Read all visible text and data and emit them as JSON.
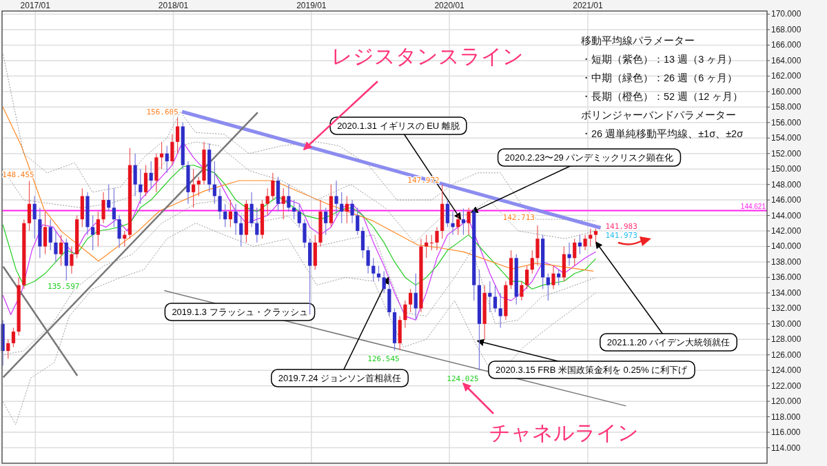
{
  "chart_data": {
    "type": "candlestick",
    "xlim": [
      "2016-10-05",
      "2022-04-20"
    ],
    "ylim": [
      112,
      170.4
    ],
    "xticks": [
      {
        "value": "2017-01-01",
        "label": "2017/01"
      },
      {
        "value": "2018-01-01",
        "label": "2018/01"
      },
      {
        "value": "2019-01-01",
        "label": "2019/01"
      },
      {
        "value": "2020-01-01",
        "label": "2020/01"
      },
      {
        "value": "2021-01-01",
        "label": "2021/01"
      }
    ],
    "yticks": [
      {
        "value": 114,
        "label": "114.000"
      },
      {
        "value": 116,
        "label": "116.000"
      },
      {
        "value": 118,
        "label": "118.000"
      },
      {
        "value": 120,
        "label": "120.000"
      },
      {
        "value": 122,
        "label": "122.000"
      },
      {
        "value": 124,
        "label": "124.000"
      },
      {
        "value": 126,
        "label": "126.000"
      },
      {
        "value": 128,
        "label": "128.000"
      },
      {
        "value": 130,
        "label": "130.000"
      },
      {
        "value": 132,
        "label": "132.000"
      },
      {
        "value": 134,
        "label": "134.000"
      },
      {
        "value": 136,
        "label": "136.000"
      },
      {
        "value": 138,
        "label": "138.000"
      },
      {
        "value": 140,
        "label": "140.000"
      },
      {
        "value": 142,
        "label": "142.000"
      },
      {
        "value": 144,
        "label": "144.000"
      },
      {
        "value": 146,
        "label": "146.000"
      },
      {
        "value": 148,
        "label": "148.000"
      },
      {
        "value": 150,
        "label": "150.000"
      },
      {
        "value": 152,
        "label": "152.000"
      },
      {
        "value": 154,
        "label": "154.000"
      },
      {
        "value": 156,
        "label": "156.000"
      },
      {
        "value": 158,
        "label": "158.000"
      },
      {
        "value": 160,
        "label": "160.000"
      },
      {
        "value": 162,
        "label": "162.000"
      },
      {
        "value": 164,
        "label": "164.000"
      },
      {
        "value": 166,
        "label": "166.000"
      },
      {
        "value": 168,
        "label": "168.000"
      },
      {
        "value": 170,
        "label": "170.000"
      }
    ],
    "grid": true,
    "x": [
      "2016-10-07",
      "2016-10-21",
      "2016-11-04",
      "2016-11-18",
      "2016-12-02",
      "2016-12-16",
      "2016-12-30",
      "2017-01-13",
      "2017-01-27",
      "2017-02-10",
      "2017-02-24",
      "2017-03-10",
      "2017-03-24",
      "2017-04-07",
      "2017-04-21",
      "2017-05-05",
      "2017-05-19",
      "2017-06-02",
      "2017-06-16",
      "2017-06-30",
      "2017-07-14",
      "2017-07-28",
      "2017-08-11",
      "2017-08-25",
      "2017-09-08",
      "2017-09-22",
      "2017-10-06",
      "2017-10-20",
      "2017-11-03",
      "2017-11-17",
      "2017-12-01",
      "2017-12-15",
      "2017-12-29",
      "2018-01-12",
      "2018-01-26",
      "2018-02-09",
      "2018-02-23",
      "2018-03-09",
      "2018-03-23",
      "2018-04-06",
      "2018-04-20",
      "2018-05-04",
      "2018-05-18",
      "2018-06-01",
      "2018-06-15",
      "2018-06-29",
      "2018-07-13",
      "2018-07-27",
      "2018-08-10",
      "2018-08-24",
      "2018-09-07",
      "2018-09-21",
      "2018-10-05",
      "2018-10-19",
      "2018-11-02",
      "2018-11-16",
      "2018-11-30",
      "2018-12-14",
      "2018-12-28",
      "2019-01-11",
      "2019-01-25",
      "2019-02-08",
      "2019-02-22",
      "2019-03-08",
      "2019-03-22",
      "2019-04-05",
      "2019-04-19",
      "2019-05-03",
      "2019-05-17",
      "2019-05-31",
      "2019-06-14",
      "2019-06-28",
      "2019-07-12",
      "2019-07-26",
      "2019-08-09",
      "2019-08-23",
      "2019-09-06",
      "2019-09-20",
      "2019-10-04",
      "2019-10-18",
      "2019-11-01",
      "2019-11-15",
      "2019-11-29",
      "2019-12-13",
      "2019-12-27",
      "2020-01-10",
      "2020-01-24",
      "2020-02-07",
      "2020-02-21",
      "2020-03-06",
      "2020-03-20",
      "2020-04-03",
      "2020-04-17",
      "2020-05-01",
      "2020-05-15",
      "2020-05-29",
      "2020-06-12",
      "2020-06-26",
      "2020-07-10",
      "2020-07-24",
      "2020-08-07",
      "2020-08-21",
      "2020-09-04",
      "2020-09-18",
      "2020-10-02",
      "2020-10-16",
      "2020-10-30",
      "2020-11-13",
      "2020-11-27",
      "2020-12-11",
      "2020-12-25",
      "2021-01-08",
      "2021-01-22"
    ],
    "ohlc": [
      [
        130,
        130.5,
        124.6,
        126.5
      ],
      [
        126.5,
        128,
        125.5,
        127.5
      ],
      [
        127.5,
        129.5,
        127,
        129
      ],
      [
        129,
        136,
        128.5,
        135
      ],
      [
        135,
        143.5,
        134.5,
        143
      ],
      [
        143,
        148.455,
        142,
        145.5
      ],
      [
        145.5,
        146.5,
        141,
        143.5
      ],
      [
        143.5,
        145,
        138.5,
        140
      ],
      [
        140,
        144.5,
        139,
        142.5
      ],
      [
        142.5,
        143.5,
        139.5,
        140.5
      ],
      [
        140.5,
        142,
        138,
        139
      ],
      [
        139,
        141.5,
        137.5,
        140.5
      ],
      [
        140.5,
        141,
        135.597,
        137.5
      ],
      [
        137.5,
        140,
        136.5,
        139
      ],
      [
        139,
        144,
        138.5,
        143.5
      ],
      [
        143.5,
        147.5,
        142.5,
        146.5
      ],
      [
        146.5,
        147,
        141.5,
        142.5
      ],
      [
        142.5,
        144,
        139.5,
        141.5
      ],
      [
        141.5,
        144.5,
        140,
        143.5
      ],
      [
        143.5,
        147,
        143,
        146
      ],
      [
        146,
        148,
        144.5,
        145
      ],
      [
        145,
        147.5,
        142.5,
        143.5
      ],
      [
        143.5,
        144,
        139.8,
        141
      ],
      [
        141,
        142,
        140,
        141.5
      ],
      [
        141.5,
        152.7,
        141,
        150.5
      ],
      [
        150.5,
        152,
        146.5,
        148
      ],
      [
        148,
        150,
        145.5,
        147
      ],
      [
        147,
        150.5,
        146.5,
        149.5
      ],
      [
        149.5,
        151,
        147.5,
        148.5
      ],
      [
        148.5,
        152,
        147,
        151.5
      ],
      [
        151.5,
        153.5,
        150,
        152
      ],
      [
        152,
        153,
        149.5,
        151
      ],
      [
        151,
        154.5,
        150.5,
        153.5
      ],
      [
        153.5,
        156.605,
        152,
        155.5
      ],
      [
        155.5,
        156,
        150,
        150.5
      ],
      [
        150.5,
        151,
        145.5,
        147
      ],
      [
        147,
        150,
        145,
        148
      ],
      [
        148,
        149,
        146.5,
        148.5
      ],
      [
        148.5,
        153.5,
        148,
        152.5
      ],
      [
        152.5,
        153.3,
        147,
        148
      ],
      [
        148,
        151,
        145.5,
        146.5
      ],
      [
        146.5,
        147.5,
        143.5,
        144.5
      ],
      [
        144.5,
        145.5,
        142.5,
        143.5
      ],
      [
        143.5,
        146,
        142.5,
        144.5
      ],
      [
        144.5,
        145.5,
        141.5,
        143
      ],
      [
        143,
        144,
        140,
        141.5
      ],
      [
        141.5,
        146,
        140.5,
        145.5
      ],
      [
        145.5,
        147,
        142.5,
        143
      ],
      [
        143,
        145,
        140.5,
        141.5
      ],
      [
        141.5,
        146,
        141,
        145.5
      ],
      [
        145.5,
        147.5,
        144,
        146.5
      ],
      [
        146.5,
        149.5,
        146,
        148.5
      ],
      [
        148.5,
        149,
        144.5,
        145.5
      ],
      [
        145.5,
        147.5,
        143.5,
        146.5
      ],
      [
        146.5,
        148,
        144.5,
        145
      ],
      [
        145,
        146,
        143.5,
        144.5
      ],
      [
        144.5,
        145.5,
        142.5,
        143
      ],
      [
        143,
        143.5,
        139.8,
        140.5
      ],
      [
        140.5,
        141,
        131.2,
        137.5
      ],
      [
        137.5,
        141.5,
        137,
        140.5
      ],
      [
        140.5,
        146,
        140,
        144.5
      ],
      [
        144.5,
        145,
        141.5,
        143
      ],
      [
        143,
        148,
        142.5,
        146.5
      ],
      [
        146.5,
        148.5,
        144,
        145.5
      ],
      [
        145.5,
        147,
        143,
        144.5
      ],
      [
        144.5,
        146.5,
        143,
        145.5
      ],
      [
        145.5,
        146,
        143,
        144
      ],
      [
        144,
        145,
        141.5,
        142
      ],
      [
        142,
        142.5,
        138.5,
        139.5
      ],
      [
        139.5,
        140,
        136.5,
        137.5
      ],
      [
        137.5,
        138.5,
        135.5,
        136.5
      ],
      [
        136.5,
        137.5,
        135.5,
        136
      ],
      [
        136,
        136.8,
        134,
        134.5
      ],
      [
        134.5,
        135.5,
        131,
        131.5
      ],
      [
        131.5,
        132,
        126.545,
        127.5
      ],
      [
        127.5,
        131,
        126.6,
        130.5
      ],
      [
        130.5,
        133,
        129.5,
        132.5
      ],
      [
        132.5,
        134.5,
        131.5,
        134
      ],
      [
        134,
        136.5,
        130.5,
        132
      ],
      [
        132,
        141,
        131.5,
        140
      ],
      [
        140,
        141.5,
        138.5,
        140.5
      ],
      [
        140.5,
        141.5,
        139.5,
        140.5
      ],
      [
        140.5,
        142.5,
        139.5,
        142
      ],
      [
        142,
        147.972,
        141,
        145.5
      ],
      [
        145.5,
        146,
        142.5,
        143
      ],
      [
        143,
        144.5,
        141.5,
        142.5
      ],
      [
        142.5,
        144,
        141.5,
        143.5
      ],
      [
        143.5,
        144.9,
        141.5,
        143
      ],
      [
        143,
        145,
        141.5,
        144.5
      ],
      [
        144.5,
        144.8,
        133,
        135
      ],
      [
        135,
        137,
        124.025,
        130
      ],
      [
        130,
        135,
        128,
        134
      ],
      [
        134,
        135.5,
        131.5,
        133.5
      ],
      [
        133.5,
        135,
        131.5,
        132
      ],
      [
        132,
        134,
        129.5,
        131
      ],
      [
        131,
        135.5,
        130.5,
        135
      ],
      [
        135,
        139.5,
        134.5,
        138.5
      ],
      [
        138.5,
        139,
        132.5,
        133.5
      ],
      [
        133.5,
        135.5,
        133,
        135
      ],
      [
        135,
        137.5,
        134.5,
        137
      ],
      [
        137,
        139.5,
        136.5,
        138.5
      ],
      [
        138.5,
        142.713,
        137.5,
        141
      ],
      [
        141,
        141.5,
        134.5,
        136
      ],
      [
        136,
        136.5,
        133,
        135
      ],
      [
        135,
        137.5,
        134.5,
        136.5
      ],
      [
        136.5,
        137,
        135,
        136
      ],
      [
        136,
        140,
        135.5,
        139
      ],
      [
        139,
        140.5,
        137.5,
        138.5
      ],
      [
        138.5,
        141,
        137.5,
        140.5
      ],
      [
        140.5,
        141.5,
        139,
        140
      ],
      [
        140,
        141.5,
        139.5,
        141
      ],
      [
        141,
        142.3,
        140,
        141.5
      ],
      [
        141.5,
        142.3,
        140.5,
        141.983
      ]
    ],
    "series": [
      {
        "type": "line",
        "color": "#cc33ff",
        "x": [
          "2016-10-07",
          "2016-10-28",
          "2016-11-25",
          "2016-12-23",
          "2017-01-20",
          "2017-02-17",
          "2017-03-17",
          "2017-04-14",
          "2017-05-12",
          "2017-06-09",
          "2017-07-07",
          "2017-08-04",
          "2017-09-01",
          "2017-10-06",
          "2017-11-03",
          "2017-12-01",
          "2017-12-29",
          "2018-01-26",
          "2018-02-23",
          "2018-03-23",
          "2018-04-20",
          "2018-05-18",
          "2018-06-15",
          "2018-07-13",
          "2018-08-10",
          "2018-09-07",
          "2018-10-05",
          "2018-11-02",
          "2018-11-30",
          "2018-12-28",
          "2019-01-25",
          "2019-02-22",
          "2019-03-22",
          "2019-04-19",
          "2019-05-17",
          "2019-06-14",
          "2019-07-12",
          "2019-08-09",
          "2019-09-06",
          "2019-10-04",
          "2019-11-01",
          "2019-11-29",
          "2019-12-27",
          "2020-01-24",
          "2020-02-21",
          "2020-03-20",
          "2020-04-17",
          "2020-05-15",
          "2020-06-12",
          "2020-07-10",
          "2020-08-07",
          "2020-09-04",
          "2020-10-02",
          "2020-10-30",
          "2020-11-27",
          "2020-12-25",
          "2021-01-22"
        ],
        "values": [
          133.7,
          131.2,
          134,
          139.5,
          142.8,
          142.5,
          140.5,
          139,
          141.5,
          143,
          142.5,
          143.5,
          142,
          146,
          147.5,
          149,
          150.5,
          153.5,
          151.5,
          150,
          149.5,
          147,
          144.5,
          143,
          143.5,
          144,
          145.5,
          146,
          145.5,
          142.5,
          141.5,
          142.5,
          145,
          145.5,
          144,
          140.5,
          137.5,
          134,
          131,
          130.5,
          134,
          138.5,
          141.5,
          142.5,
          143.5,
          140,
          136.5,
          133.5,
          133,
          134,
          135.5,
          138,
          137.5,
          136.5,
          137.5,
          138.5,
          139.3
        ]
      },
      {
        "type": "line",
        "color": "#22cc22",
        "x": [
          "2016-10-07",
          "2016-11-11",
          "2016-12-02",
          "2016-12-30",
          "2017-01-27",
          "2017-02-24",
          "2017-03-24",
          "2017-04-21",
          "2017-05-19",
          "2017-06-16",
          "2017-07-14",
          "2017-08-11",
          "2017-09-08",
          "2017-10-06",
          "2017-11-03",
          "2017-12-01",
          "2017-12-29",
          "2018-01-26",
          "2018-02-23",
          "2018-03-23",
          "2018-04-20",
          "2018-05-18",
          "2018-06-15",
          "2018-07-13",
          "2018-08-10",
          "2018-09-07",
          "2018-10-05",
          "2018-11-02",
          "2018-12-14",
          "2019-01-25",
          "2019-02-22",
          "2019-03-22",
          "2019-04-19",
          "2019-05-17",
          "2019-06-14",
          "2019-07-12",
          "2019-08-09",
          "2019-09-06",
          "2019-10-04",
          "2019-11-01",
          "2019-11-29",
          "2019-12-27",
          "2020-01-24",
          "2020-02-21",
          "2020-03-20",
          "2020-04-17",
          "2020-05-15",
          "2020-06-12",
          "2020-07-10",
          "2020-08-07",
          "2020-09-04",
          "2020-10-02",
          "2020-10-30",
          "2020-11-27",
          "2020-12-25",
          "2021-01-22"
        ],
        "values": [
          142.8,
          137,
          134.9,
          135.5,
          136.5,
          138,
          139.5,
          139,
          141,
          142,
          142.2,
          142.5,
          143,
          145,
          146,
          147.5,
          149,
          150.3,
          150.5,
          150,
          149.5,
          148,
          146,
          145,
          144.5,
          145.5,
          146.5,
          145.5,
          144,
          143.5,
          144,
          144.8,
          145,
          144,
          142.5,
          140.5,
          138,
          136,
          135,
          136,
          137.5,
          139.5,
          140.5,
          141.5,
          140,
          138.5,
          137,
          135.5,
          135.5,
          134.5,
          135,
          135.3,
          135.5,
          136.5,
          137,
          138.4
        ]
      },
      {
        "type": "line",
        "color": "#ff8822",
        "x": [
          "2016-10-07",
          "2016-11-25",
          "2017-01-24",
          "2017-03-12",
          "2017-06-17",
          "2017-09-28",
          "2017-11-26",
          "2018-03-26",
          "2018-06-24",
          "2018-09-22",
          "2019-02-12",
          "2019-06-13",
          "2019-10-09",
          "2019-12-09",
          "2020-02-08",
          "2020-06-14",
          "2020-08-16",
          "2020-09-23",
          "2021-01-16"
        ],
        "values": [
          158,
          153,
          144.8,
          141.9,
          138.1,
          141.9,
          144.6,
          147.2,
          148.5,
          148.5,
          145.5,
          143.3,
          140.2,
          139.8,
          139.3,
          137.1,
          137.8,
          137.6,
          136.8
        ]
      },
      {
        "type": "line",
        "color": "#999999",
        "line_style": "dotted",
        "x": [
          "2016-10-07",
          "2016-12-01",
          "2017-02-01",
          "2017-04-15",
          "2017-06-01",
          "2017-08-15",
          "2017-10-15",
          "2017-12-15",
          "2018-01-20",
          "2018-03-01",
          "2018-05-15",
          "2018-07-20",
          "2018-10-15",
          "2019-01-15",
          "2019-03-15",
          "2019-06-01",
          "2019-08-15",
          "2019-11-15",
          "2020-01-15",
          "2020-03-15",
          "2020-05-15",
          "2020-07-15",
          "2020-08-20",
          "2020-10-15",
          "2021-01-22"
        ],
        "values": [
          165,
          152,
          149.5,
          150.8,
          147,
          147.7,
          151.5,
          154,
          157.4,
          154.7,
          154.5,
          152,
          153,
          153.5,
          153,
          150.5,
          146,
          146,
          148.2,
          149.5,
          149.5,
          145,
          143.5,
          143.5,
          143.3
        ]
      },
      {
        "type": "line",
        "color": "#999999",
        "line_style": "dotted",
        "x": [
          "2016-10-07",
          "2016-12-01",
          "2017-02-15",
          "2017-05-01",
          "2017-07-15",
          "2017-09-15",
          "2018-01-20",
          "2018-03-01",
          "2018-05-01",
          "2018-07-20",
          "2018-10-15",
          "2019-01-15",
          "2019-04-15",
          "2019-07-15",
          "2019-10-01",
          "2019-12-15",
          "2020-02-15",
          "2020-04-15",
          "2020-07-01",
          "2020-09-01",
          "2020-11-01",
          "2021-01-22"
        ],
        "values": [
          150,
          146,
          145.5,
          145,
          145.5,
          146.5,
          153,
          153.5,
          153,
          149.8,
          148.5,
          146,
          148,
          145,
          140.5,
          144,
          144.1,
          146,
          142,
          141.5,
          141,
          142
        ]
      },
      {
        "type": "line",
        "color": "#999999",
        "line_style": "dotted",
        "x": [
          "2016-10-07",
          "2016-12-01",
          "2017-02-15",
          "2017-04-15",
          "2017-07-01",
          "2017-09-15",
          "2017-12-01",
          "2018-03-01",
          "2018-05-15",
          "2018-08-01",
          "2018-11-01",
          "2019-01-15",
          "2019-04-15",
          "2019-06-15",
          "2019-09-01",
          "2019-11-01",
          "2020-01-15",
          "2020-03-01",
          "2020-05-01",
          "2020-07-01",
          "2020-09-01",
          "2020-11-01",
          "2021-01-22"
        ],
        "values": [
          126,
          126.5,
          130,
          134.5,
          137.5,
          139,
          143,
          145.5,
          146,
          143,
          143.9,
          140,
          141,
          141.5,
          131.5,
          131,
          136,
          139.6,
          130,
          130.5,
          133.5,
          134.5,
          136
        ]
      },
      {
        "type": "line",
        "color": "#999999",
        "line_style": "dotted",
        "x": [
          "2016-10-07",
          "2016-11-10",
          "2016-12-20",
          "2017-02-20",
          "2017-04-01",
          "2017-06-01",
          "2017-08-15",
          "2017-10-15",
          "2017-12-15",
          "2018-03-01",
          "2018-05-15",
          "2018-08-01",
          "2018-11-01",
          "2019-01-15",
          "2019-04-01",
          "2019-06-15",
          "2019-09-01",
          "2019-11-01",
          "2020-01-15",
          "2020-03-15",
          "2020-05-01",
          "2020-07-15",
          "2020-10-01",
          "2021-01-22"
        ],
        "values": [
          120,
          117,
          123,
          125,
          131,
          134.5,
          136,
          137,
          141,
          143,
          141.5,
          140,
          141,
          135,
          136,
          135.5,
          127,
          128,
          133,
          127,
          123,
          127,
          130,
          134
        ]
      },
      {
        "type": "line",
        "color": "#8080ee",
        "x": [
          "2018-01-24",
          "2021-02-04"
        ],
        "values": [
          157.4,
          142.4
        ]
      },
      {
        "type": "line",
        "color": "#777777",
        "x": [
          "2017-12-08",
          "2021-04-12"
        ],
        "values": [
          134.3,
          119.4
        ]
      },
      {
        "type": "line",
        "color": "#777777",
        "x": [
          "2016-10-08",
          "2017-04-22"
        ],
        "values": [
          137.4,
          123.3
        ]
      },
      {
        "type": "line",
        "color": "#777777",
        "x": [
          "2016-10-08",
          "2018-08-12"
        ],
        "values": [
          123.1,
          157.3
        ]
      }
    ],
    "ref_lines": [
      {
        "axis": "y",
        "value": 144.621,
        "label": "144.621",
        "color": "#ff22ee"
      }
    ],
    "annotations": [
      {
        "text": "156.605",
        "x": "2018-01-12",
        "y": 156.605
      },
      {
        "text": "148.455",
        "x": "2016-12-16",
        "y": 148.455
      },
      {
        "text": "135.597",
        "x": "2017-03-24",
        "y": 135.597
      },
      {
        "text": "147.972",
        "x": "2019-12-13",
        "y": 147.972
      },
      {
        "text": "126.545",
        "x": "2019-08-09",
        "y": 126.545
      },
      {
        "text": "124.025",
        "x": "2020-03-20",
        "y": 124.025
      },
      {
        "text": "142.713",
        "x": "2020-08-21",
        "y": 142.713
      },
      {
        "text": "141.983",
        "x": "2021-01-22",
        "y": 141.983
      },
      {
        "text": "141.973",
        "x": "2021-01-22",
        "y": 141.973
      },
      {
        "text": "2019.1.3 フラッシュ・クラッシュ",
        "x": "2019-01-03",
        "y": 131.2
      },
      {
        "text": "2019.7.24 ジョンソン首相就任",
        "x": "2019-07-24",
        "y": 136
      },
      {
        "text": "2020.1.31 イギリスの EU 離脱",
        "x": "2020-01-31",
        "y": 143.5
      },
      {
        "text": "2020.2.23〜29 パンデミックリスク顕在化",
        "x": "2020-02-28",
        "y": 144.4
      },
      {
        "text": "2020.3.15 FRB 米国政策金利を 0.25% に利下げ",
        "x": "2020-03-15",
        "y": 127.8
      },
      {
        "text": "2021.1.20 バイデン大統領就任",
        "x": "2021-01-22",
        "y": 140.6
      },
      {
        "text": "レジスタンスライン",
        "x": "2018-12-12",
        "y": 152.5
      },
      "チャネルライン",
      "移動平均線パラメーター",
      "・短期（紫色）：13 週（3 ヶ月）",
      "・中期（緑色）：26 週（6 ヶ月）",
      "・長期（橙色）：52 週（12 ヶ月）",
      "ボリンジャーバンドパラメーター",
      "・26 週単純移動平均線、±1σ、±2σ"
    ]
  }
}
